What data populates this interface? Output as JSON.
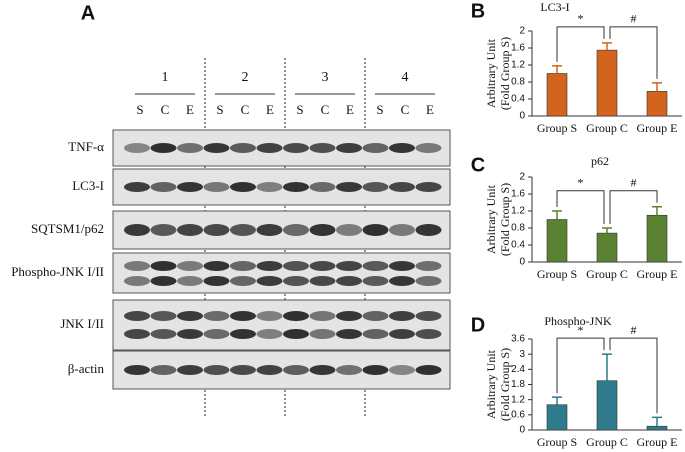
{
  "blot": {
    "panel": "A",
    "groups": [
      "1",
      "2",
      "3",
      "4"
    ],
    "lanes": [
      "S",
      "C",
      "E"
    ],
    "rows": [
      "TNF-α",
      "LC3-I",
      "SQTSM1/p62",
      "Phospho-JNK I/II",
      "JNK I/II",
      "β-actin"
    ]
  },
  "chart_data": [
    {
      "type": "bar",
      "panel": "B",
      "title": "LC3-I",
      "ylabel": [
        "Arbitrary Unit",
        "(Fold Group S)"
      ],
      "categories": [
        "Group S",
        "Group C",
        "Group E"
      ],
      "values": [
        1.0,
        1.55,
        0.58
      ],
      "errors": [
        0.18,
        0.17,
        0.2
      ],
      "color": "#d2641e",
      "ylim": [
        0,
        2
      ],
      "yticks": [
        0,
        0.4,
        0.8,
        1.2,
        1.6,
        2
      ],
      "significance": [
        "*",
        "#"
      ]
    },
    {
      "type": "bar",
      "panel": "C",
      "title": "p62",
      "ylabel": [
        "Arbitrary Unit",
        "(Fold Group S)"
      ],
      "categories": [
        "Group S",
        "Group C",
        "Group E"
      ],
      "values": [
        1.0,
        0.68,
        1.1
      ],
      "errors": [
        0.2,
        0.12,
        0.2
      ],
      "color": "#5b8232",
      "ylim": [
        0,
        2
      ],
      "yticks": [
        0,
        0.4,
        0.8,
        1.2,
        1.6,
        2
      ],
      "significance": [
        "*",
        "#"
      ]
    },
    {
      "type": "bar",
      "panel": "D",
      "title": "Phospho-JNK",
      "ylabel": [
        "Arbitrary Unit",
        "(Fold Group S)"
      ],
      "categories": [
        "Group S",
        "Group C",
        "Group E"
      ],
      "values": [
        1.0,
        1.95,
        0.15
      ],
      "errors": [
        0.3,
        1.05,
        0.35
      ],
      "color": "#2d7b8c",
      "ylim": [
        0,
        3.6
      ],
      "yticks": [
        0,
        0.6,
        1.2,
        1.8,
        2.4,
        3,
        3.6
      ],
      "significance": [
        "*",
        "#"
      ]
    }
  ]
}
